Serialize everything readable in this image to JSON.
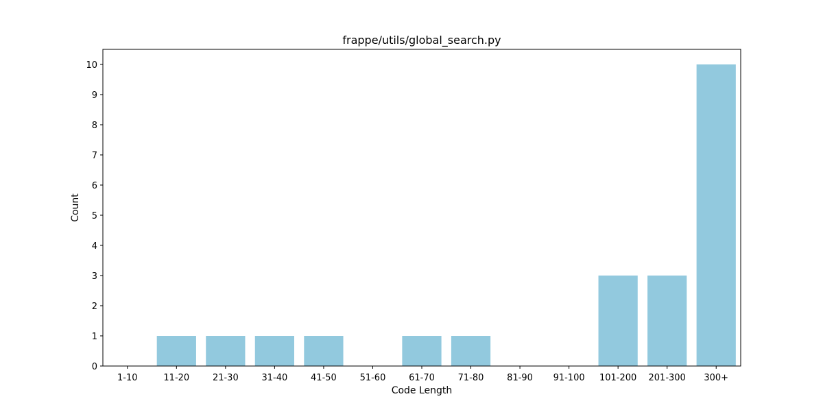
{
  "chart_data": {
    "type": "bar",
    "title": "frappe/utils/global_search.py",
    "xlabel": "Code Length",
    "ylabel": "Count",
    "categories": [
      "1-10",
      "11-20",
      "21-30",
      "31-40",
      "41-50",
      "51-60",
      "61-70",
      "71-80",
      "81-90",
      "91-100",
      "101-200",
      "201-300",
      "300+"
    ],
    "values": [
      0,
      1,
      1,
      1,
      1,
      0,
      1,
      1,
      0,
      0,
      3,
      3,
      10
    ],
    "ylim": [
      0,
      10.5
    ],
    "yticks": [
      0,
      1,
      2,
      3,
      4,
      5,
      6,
      7,
      8,
      9,
      10
    ],
    "bar_color": "#92c9de",
    "grid": false,
    "legend": "none"
  }
}
